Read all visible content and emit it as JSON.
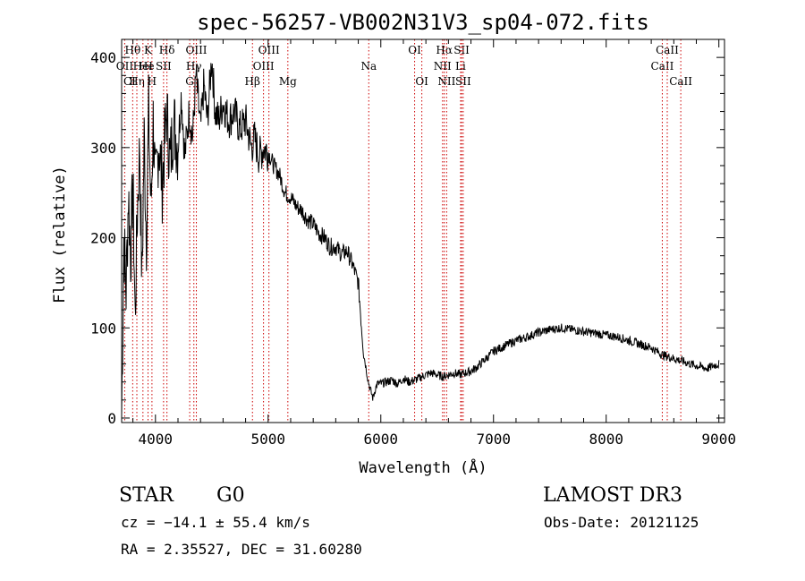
{
  "chart_data": {
    "type": "line",
    "title": "spec-56257-VB002N31V3_sp04-072.fits",
    "xlabel": "Wavelength (Å)",
    "ylabel": "Flux (relative)",
    "xlim": [
      3700,
      9050
    ],
    "ylim": [
      -5,
      420
    ],
    "x_ticks": [
      4000,
      5000,
      6000,
      7000,
      8000,
      9000
    ],
    "y_ticks": [
      0,
      100,
      200,
      300,
      400
    ],
    "x_tick_labels": [
      "4000",
      "5000",
      "6000",
      "7000",
      "8000",
      "9000"
    ],
    "y_tick_labels": [
      "0",
      "100",
      "200",
      "300",
      "400"
    ],
    "line_color": "#000000",
    "marker_color": "#cc0000",
    "spectrum": {
      "name": "flux",
      "x": [
        3700,
        3720,
        3740,
        3760,
        3780,
        3800,
        3820,
        3840,
        3860,
        3880,
        3900,
        3920,
        3940,
        3960,
        3980,
        4000,
        4030,
        4060,
        4100,
        4130,
        4160,
        4200,
        4230,
        4260,
        4300,
        4330,
        4360,
        4400,
        4430,
        4460,
        4500,
        4530,
        4560,
        4600,
        4650,
        4700,
        4750,
        4800,
        4850,
        4880,
        4920,
        4960,
        5000,
        5050,
        5100,
        5150,
        5200,
        5250,
        5300,
        5350,
        5400,
        5450,
        5500,
        5550,
        5600,
        5650,
        5700,
        5750,
        5800,
        5830,
        5850,
        5870,
        5890,
        5910,
        5930,
        5950,
        5970,
        6000,
        6050,
        6100,
        6150,
        6200,
        6250,
        6300,
        6350,
        6400,
        6450,
        6500,
        6550,
        6600,
        6650,
        6700,
        6750,
        6800,
        6850,
        6900,
        6950,
        7000,
        7100,
        7200,
        7300,
        7400,
        7500,
        7600,
        7700,
        7800,
        7900,
        8000,
        8100,
        8200,
        8300,
        8400,
        8500,
        8600,
        8700,
        8800,
        8900,
        8950,
        9000
      ],
      "values": [
        5,
        200,
        140,
        250,
        180,
        260,
        110,
        230,
        300,
        150,
        310,
        200,
        340,
        230,
        330,
        250,
        310,
        260,
        340,
        280,
        330,
        300,
        360,
        290,
        340,
        310,
        380,
        320,
        370,
        330,
        400,
        340,
        330,
        350,
        330,
        340,
        320,
        330,
        300,
        310,
        290,
        300,
        295,
        280,
        270,
        250,
        245,
        235,
        230,
        220,
        215,
        205,
        200,
        190,
        190,
        182,
        185,
        170,
        150,
        100,
        70,
        55,
        40,
        30,
        22,
        32,
        38,
        38,
        40,
        42,
        38,
        44,
        40,
        42,
        45,
        48,
        50,
        48,
        46,
        48,
        50,
        48,
        50,
        52,
        56,
        62,
        68,
        74,
        80,
        86,
        90,
        95,
        98,
        100,
        98,
        96,
        94,
        92,
        90,
        86,
        82,
        78,
        70,
        66,
        62,
        58,
        55,
        58,
        60
      ]
    },
    "spectral_lines": [
      {
        "wavelength": 3727,
        "label": "OII",
        "row": 2
      },
      {
        "wavelength": 3798,
        "label": "Hθ",
        "row": 1
      },
      {
        "wavelength": 3835,
        "label": "Hη",
        "row": 3
      },
      {
        "wavelength": 3889,
        "label": "HeI",
        "row": 2
      },
      {
        "wavelength": 3934,
        "label": "K",
        "row": 1
      },
      {
        "wavelength": 3969,
        "label": "H",
        "row": 3
      },
      {
        "wavelength": 4072,
        "label": "SII",
        "row": 2
      },
      {
        "wavelength": 4102,
        "label": "Hδ",
        "row": 1
      },
      {
        "wavelength": 4304,
        "label": "G",
        "row": 3
      },
      {
        "wavelength": 4341,
        "label": "Hγ",
        "row": 2
      },
      {
        "wavelength": 4363,
        "label": "OIII",
        "row": 1
      },
      {
        "wavelength": 4861,
        "label": "Hβ",
        "row": 3
      },
      {
        "wavelength": 4959,
        "label": "OIII",
        "row": 2
      },
      {
        "wavelength": 5007,
        "label": "OIII",
        "row": 1
      },
      {
        "wavelength": 5175,
        "label": "Mg",
        "row": 3
      },
      {
        "wavelength": 5893,
        "label": "Na",
        "row": 2
      },
      {
        "wavelength": 6300,
        "label": "OI",
        "row": 1
      },
      {
        "wavelength": 6364,
        "label": "OI",
        "row": 3
      },
      {
        "wavelength": 6548,
        "label": "NII",
        "row": 2
      },
      {
        "wavelength": 6563,
        "label": "Hα",
        "row": 1
      },
      {
        "wavelength": 6584,
        "label": "NII",
        "row": 3
      },
      {
        "wavelength": 6708,
        "label": "Li",
        "row": 2
      },
      {
        "wavelength": 6717,
        "label": "SII",
        "row": 1
      },
      {
        "wavelength": 6731,
        "label": "SII",
        "row": 3
      },
      {
        "wavelength": 8498,
        "label": "CaII",
        "row": 2
      },
      {
        "wavelength": 8542,
        "label": "CaII",
        "row": 1
      },
      {
        "wavelength": 8662,
        "label": "CaII",
        "row": 3
      }
    ],
    "line_label_extras": [
      "CI",
      "He"
    ]
  },
  "info": {
    "object_class": "STAR",
    "subclass": "G0",
    "survey": "LAMOST DR3",
    "redshift": "cz = −14.1 ± 55.4 km/s",
    "obs_date": "Obs-Date: 20121125",
    "coords": "RA =   2.35527, DEC =  31.60280"
  }
}
